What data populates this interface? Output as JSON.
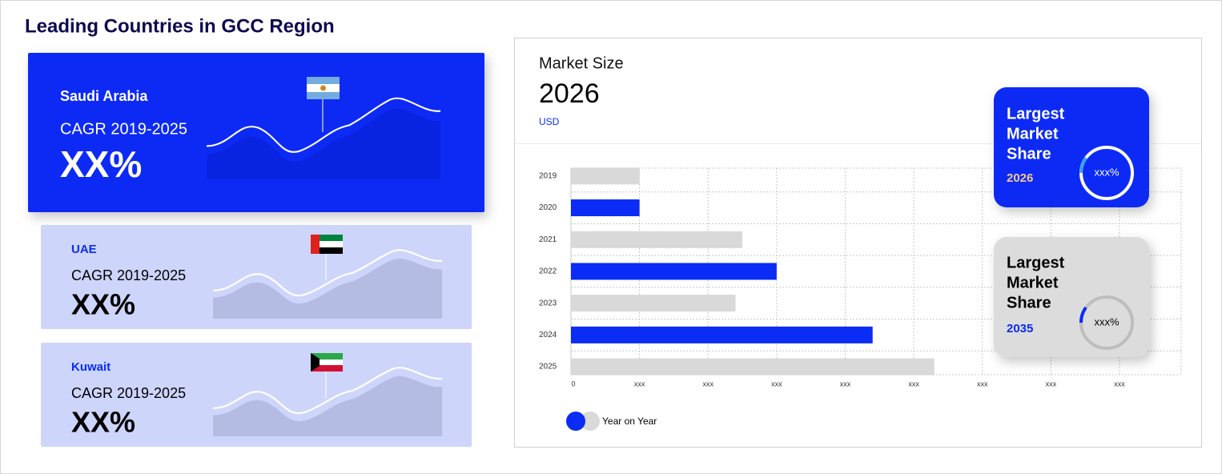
{
  "title": "Leading Countries in GCC Region",
  "countries": [
    {
      "name": "Saudi Arabia",
      "metric": "CAGR 2019-2025",
      "value": "XX%"
    },
    {
      "name": "UAE",
      "metric": "CAGR 2019-2025",
      "value": "XX%"
    },
    {
      "name": "Kuwait",
      "metric": "CAGR 2019-2025",
      "value": "XX%"
    }
  ],
  "market": {
    "label": "Market Size",
    "year": "2026",
    "unit": "USD"
  },
  "share_cards": [
    {
      "lines": [
        "Largest",
        "Market",
        "Share"
      ],
      "year": "2026",
      "value": "xxx%"
    },
    {
      "lines": [
        "Largest",
        "Market",
        "Share"
      ],
      "year": "2035",
      "value": "xxx%"
    }
  ],
  "chart_data": {
    "type": "bar",
    "orientation": "horizontal",
    "categories": [
      "2019",
      "2020",
      "2021",
      "2022",
      "2023",
      "2024",
      "2025"
    ],
    "series": [
      {
        "name": "Year on Year",
        "colors": [
          "#d9d9d9",
          "#0a2cf5",
          "#d9d9d9",
          "#0a2cf5",
          "#d9d9d9",
          "#0a2cf5",
          "#d9d9d9"
        ],
        "values": [
          1.0,
          1.0,
          2.5,
          3.0,
          2.4,
          4.4,
          5.3
        ]
      }
    ],
    "xlim": [
      0,
      8.9
    ],
    "xticks": [
      0,
      {
        "value": 1,
        "label": "xxx"
      },
      {
        "value": 2,
        "label": "xxx"
      },
      {
        "value": 3,
        "label": "xxx"
      },
      {
        "value": 4,
        "label": "xxx"
      },
      {
        "value": 5,
        "label": "xxx"
      },
      {
        "value": 6,
        "label": "xxx"
      },
      {
        "value": 7,
        "label": "xxx"
      },
      {
        "value": 8,
        "label": "xxx"
      }
    ],
    "grid": true
  }
}
